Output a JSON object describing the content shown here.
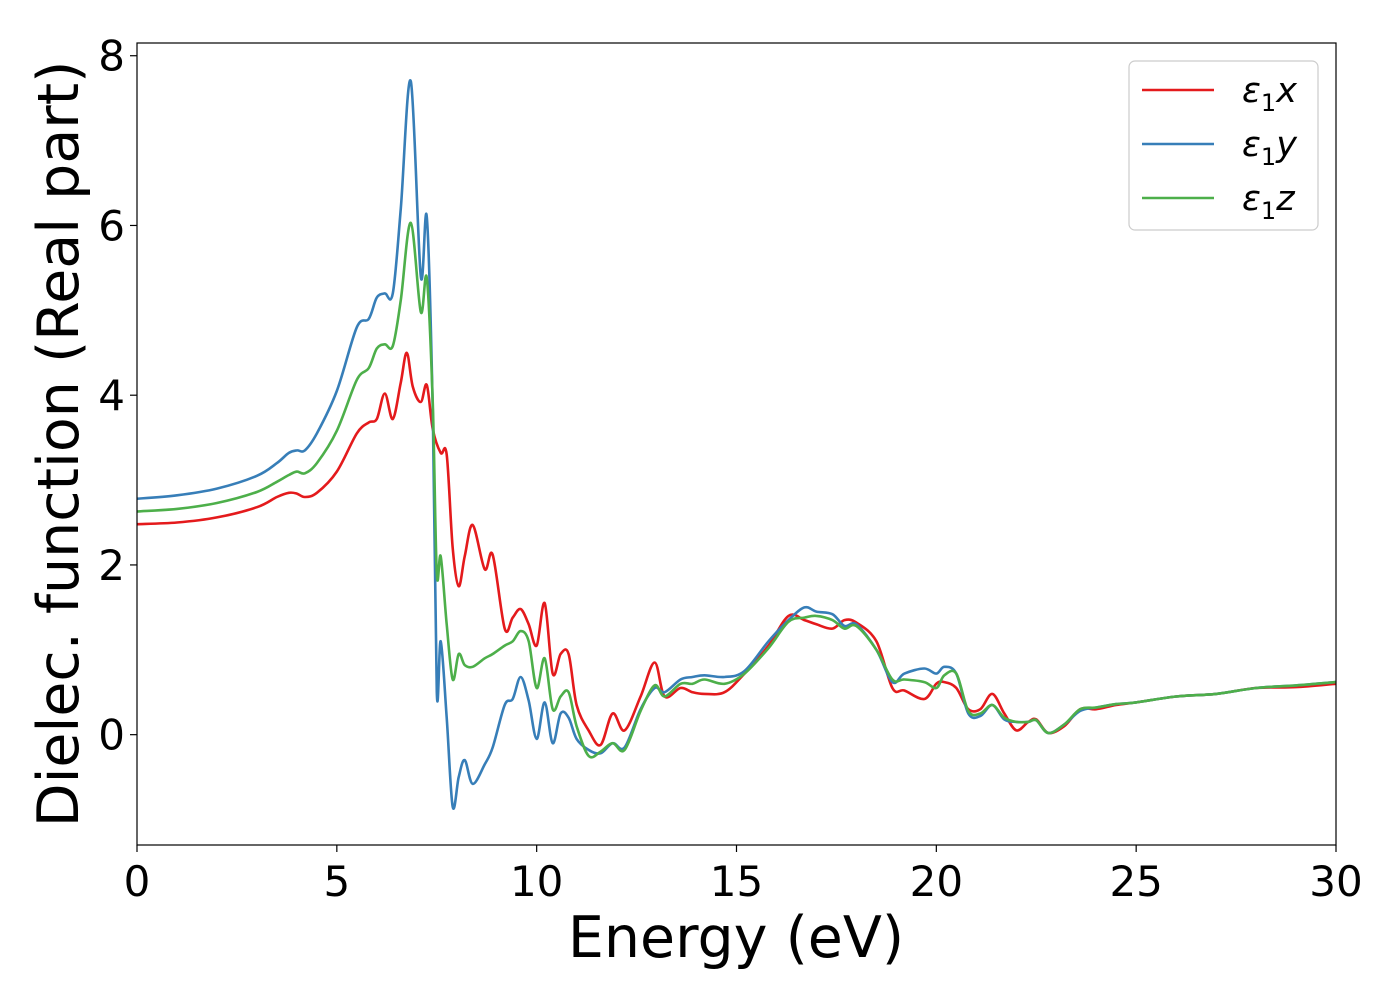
{
  "chart_data": {
    "type": "line",
    "xlabel": "Energy (eV)",
    "ylabel": "Dielec. function (Real part)",
    "xlim": [
      0,
      30
    ],
    "ylim": [
      -1.3,
      8.15
    ],
    "xticks": [
      0,
      5,
      10,
      15,
      20,
      25,
      30
    ],
    "yticks": [
      0,
      2,
      4,
      6,
      8
    ],
    "grid": false,
    "legend_position": "top-right",
    "series": [
      {
        "name": "ε₁x",
        "legend_base": "ε",
        "legend_sub": "1",
        "legend_var": "x",
        "color": "#e41a1c",
        "x": [
          0,
          1,
          2,
          3,
          3.5,
          3.8,
          4.0,
          4.2,
          4.5,
          5.0,
          5.5,
          5.8,
          6.0,
          6.2,
          6.4,
          6.6,
          6.75,
          6.9,
          7.1,
          7.25,
          7.4,
          7.6,
          7.75,
          7.9,
          8.05,
          8.2,
          8.4,
          8.7,
          8.9,
          9.2,
          9.4,
          9.6,
          9.8,
          10.0,
          10.2,
          10.4,
          10.6,
          10.8,
          11.0,
          11.3,
          11.6,
          11.9,
          12.2,
          12.6,
          12.95,
          13.2,
          13.6,
          13.9,
          14.2,
          14.7,
          15.2,
          15.8,
          16.3,
          16.7,
          17.0,
          17.4,
          17.7,
          18.0,
          18.5,
          18.9,
          19.2,
          19.7,
          20.0,
          20.2,
          20.5,
          20.8,
          21.1,
          21.4,
          21.7,
          22.0,
          22.3,
          22.5,
          22.8,
          23.2,
          23.6,
          24.0,
          24.5,
          25.0,
          26.0,
          27.0,
          28.0,
          29.0,
          30.0
        ],
        "values": [
          2.48,
          2.5,
          2.56,
          2.68,
          2.8,
          2.85,
          2.84,
          2.8,
          2.85,
          3.1,
          3.55,
          3.68,
          3.72,
          4.02,
          3.72,
          4.15,
          4.5,
          4.1,
          3.92,
          4.12,
          3.6,
          3.32,
          3.3,
          2.2,
          1.75,
          2.1,
          2.47,
          1.95,
          2.12,
          1.25,
          1.38,
          1.48,
          1.3,
          1.05,
          1.55,
          0.72,
          0.95,
          0.95,
          0.35,
          0.05,
          -0.12,
          0.25,
          0.05,
          0.45,
          0.85,
          0.45,
          0.55,
          0.5,
          0.48,
          0.5,
          0.72,
          1.05,
          1.4,
          1.35,
          1.3,
          1.25,
          1.35,
          1.32,
          1.1,
          0.55,
          0.52,
          0.42,
          0.6,
          0.62,
          0.55,
          0.3,
          0.3,
          0.48,
          0.25,
          0.05,
          0.15,
          0.18,
          0.02,
          0.1,
          0.3,
          0.3,
          0.35,
          0.38,
          0.45,
          0.48,
          0.55,
          0.56,
          0.6
        ]
      },
      {
        "name": "ε₁y",
        "legend_base": "ε",
        "legend_sub": "1",
        "legend_var": "y",
        "color": "#377eb8",
        "x": [
          0,
          1,
          2,
          3,
          3.5,
          3.8,
          4.0,
          4.2,
          4.5,
          5.0,
          5.5,
          5.8,
          6.0,
          6.2,
          6.4,
          6.6,
          6.85,
          7.1,
          7.25,
          7.4,
          7.5,
          7.6,
          7.75,
          7.9,
          8.05,
          8.2,
          8.4,
          8.7,
          8.9,
          9.2,
          9.4,
          9.6,
          9.8,
          10.0,
          10.2,
          10.4,
          10.6,
          10.8,
          11.0,
          11.3,
          11.6,
          11.9,
          12.2,
          12.6,
          12.95,
          13.2,
          13.6,
          13.9,
          14.2,
          14.7,
          15.2,
          15.8,
          16.3,
          16.7,
          17.0,
          17.4,
          17.7,
          18.0,
          18.5,
          18.9,
          19.2,
          19.7,
          20.0,
          20.2,
          20.5,
          20.8,
          21.1,
          21.4,
          21.7,
          22.0,
          22.3,
          22.5,
          22.8,
          23.2,
          23.6,
          24.0,
          24.5,
          25.0,
          26.0,
          27.0,
          28.0,
          29.0,
          30.0
        ],
        "values": [
          2.78,
          2.82,
          2.9,
          3.05,
          3.2,
          3.32,
          3.35,
          3.35,
          3.55,
          4.05,
          4.8,
          4.9,
          5.15,
          5.2,
          5.2,
          6.2,
          7.7,
          5.4,
          6.1,
          3.8,
          0.5,
          1.1,
          0.2,
          -0.85,
          -0.5,
          -0.3,
          -0.58,
          -0.35,
          -0.15,
          0.35,
          0.42,
          0.68,
          0.4,
          -0.05,
          0.38,
          -0.1,
          0.25,
          0.2,
          -0.05,
          -0.18,
          -0.22,
          -0.1,
          -0.15,
          0.3,
          0.55,
          0.5,
          0.65,
          0.68,
          0.7,
          0.68,
          0.75,
          1.1,
          1.35,
          1.5,
          1.45,
          1.42,
          1.28,
          1.3,
          1.0,
          0.62,
          0.72,
          0.78,
          0.72,
          0.8,
          0.72,
          0.25,
          0.22,
          0.35,
          0.18,
          0.15,
          0.15,
          0.17,
          0.02,
          0.12,
          0.28,
          0.32,
          0.36,
          0.38,
          0.45,
          0.48,
          0.55,
          0.58,
          0.62
        ]
      },
      {
        "name": "ε₁z",
        "legend_base": "ε",
        "legend_sub": "1",
        "legend_var": "z",
        "color": "#4daf4a",
        "x": [
          0,
          1,
          2,
          3,
          3.5,
          3.8,
          4.0,
          4.2,
          4.5,
          5.0,
          5.5,
          5.8,
          6.0,
          6.2,
          6.4,
          6.6,
          6.85,
          7.1,
          7.25,
          7.4,
          7.5,
          7.6,
          7.75,
          7.9,
          8.05,
          8.2,
          8.4,
          8.7,
          8.9,
          9.2,
          9.4,
          9.6,
          9.8,
          10.0,
          10.2,
          10.4,
          10.6,
          10.8,
          11.0,
          11.3,
          11.6,
          11.9,
          12.2,
          12.6,
          12.95,
          13.2,
          13.6,
          13.9,
          14.2,
          14.7,
          15.2,
          15.8,
          16.3,
          16.7,
          17.0,
          17.4,
          17.7,
          18.0,
          18.5,
          18.9,
          19.2,
          19.7,
          20.0,
          20.2,
          20.5,
          20.8,
          21.1,
          21.4,
          21.7,
          22.0,
          22.3,
          22.5,
          22.8,
          23.2,
          23.6,
          24.0,
          24.5,
          25.0,
          26.0,
          27.0,
          28.0,
          29.0,
          30.0
        ],
        "values": [
          2.63,
          2.66,
          2.73,
          2.86,
          2.98,
          3.06,
          3.1,
          3.08,
          3.2,
          3.58,
          4.18,
          4.32,
          4.55,
          4.6,
          4.58,
          5.12,
          6.03,
          4.98,
          5.38,
          3.9,
          1.9,
          2.1,
          1.3,
          0.65,
          0.95,
          0.82,
          0.8,
          0.9,
          0.95,
          1.05,
          1.1,
          1.22,
          1.1,
          0.55,
          0.9,
          0.3,
          0.45,
          0.5,
          0.1,
          -0.25,
          -0.2,
          -0.1,
          -0.18,
          0.28,
          0.58,
          0.45,
          0.6,
          0.6,
          0.65,
          0.6,
          0.72,
          1.02,
          1.33,
          1.38,
          1.4,
          1.35,
          1.25,
          1.28,
          1.0,
          0.65,
          0.65,
          0.62,
          0.55,
          0.7,
          0.72,
          0.28,
          0.25,
          0.35,
          0.2,
          0.15,
          0.15,
          0.17,
          0.02,
          0.12,
          0.3,
          0.32,
          0.36,
          0.38,
          0.45,
          0.48,
          0.55,
          0.58,
          0.62
        ]
      }
    ]
  }
}
